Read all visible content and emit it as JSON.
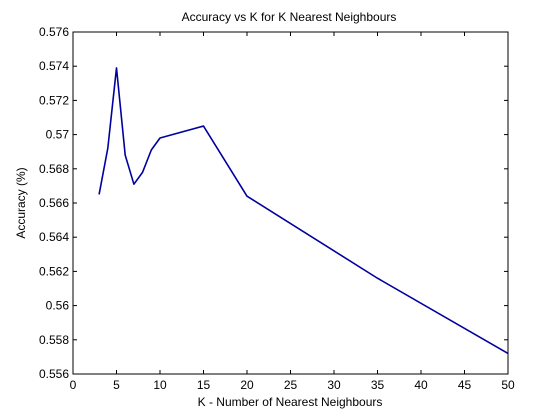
{
  "chart_data": {
    "type": "line",
    "title": "Accuracy vs K for K Nearest Neighbours",
    "xlabel": "K - Number of Nearest Neighbours",
    "ylabel": "Accuracy (%)",
    "xlim": [
      0,
      50
    ],
    "ylim": [
      0.556,
      0.576
    ],
    "xticks": [
      0,
      5,
      10,
      15,
      20,
      25,
      30,
      35,
      40,
      45,
      50
    ],
    "xtick_labels": [
      "0",
      "5",
      "10",
      "15",
      "20",
      "25",
      "30",
      "35",
      "40",
      "45",
      "50"
    ],
    "yticks": [
      0.556,
      0.558,
      0.56,
      0.562,
      0.564,
      0.566,
      0.568,
      0.57,
      0.572,
      0.574,
      0.576
    ],
    "ytick_labels": [
      "0.556",
      "0.558",
      "0.56",
      "0.562",
      "0.564",
      "0.566",
      "0.568",
      "0.57",
      "0.572",
      "0.574",
      "0.576"
    ],
    "grid": false,
    "legend": "none",
    "series": [
      {
        "color": "#0000a0",
        "x": [
          3,
          4,
          5,
          6,
          7,
          8,
          9,
          10,
          15,
          20,
          35,
          50
        ],
        "y": [
          0.5665,
          0.5692,
          0.5739,
          0.5688,
          0.5671,
          0.5678,
          0.5691,
          0.5698,
          0.5705,
          0.5664,
          0.5616,
          0.5572
        ]
      }
    ]
  }
}
